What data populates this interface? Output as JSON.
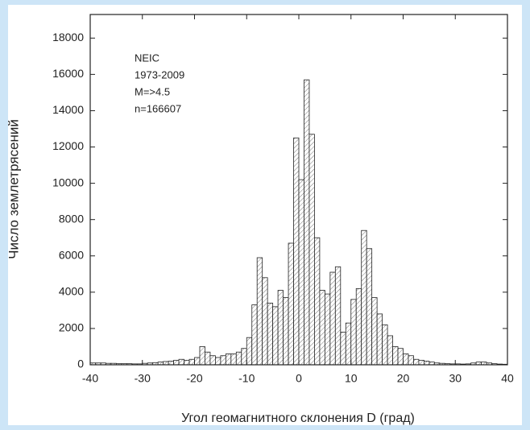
{
  "chart_data": {
    "type": "histogram",
    "xlabel": "Угол геомагнитного склонения D (град)",
    "ylabel": "Число землетрясений",
    "annotations": [
      "NEIC",
      "1973-2009",
      "M=>4.5",
      "n=166607"
    ],
    "bins": [
      -40,
      -39,
      -38,
      -37,
      -36,
      -35,
      -34,
      -33,
      -32,
      -31,
      -30,
      -29,
      -28,
      -27,
      -26,
      -25,
      -24,
      -23,
      -22,
      -21,
      -20,
      -19,
      -18,
      -17,
      -16,
      -15,
      -14,
      -13,
      -12,
      -11,
      -10,
      -9,
      -8,
      -7,
      -6,
      -5,
      -4,
      -3,
      -2,
      -1,
      0,
      1,
      2,
      3,
      4,
      5,
      6,
      7,
      8,
      9,
      10,
      11,
      12,
      13,
      14,
      15,
      16,
      17,
      18,
      19,
      20,
      21,
      22,
      23,
      24,
      25,
      26,
      27,
      28,
      29,
      30,
      31,
      32,
      33,
      34,
      35,
      36,
      37,
      38,
      39,
      40
    ],
    "values": [
      100,
      100,
      100,
      80,
      80,
      60,
      60,
      60,
      50,
      50,
      80,
      100,
      120,
      150,
      180,
      200,
      250,
      300,
      250,
      300,
      400,
      1000,
      700,
      500,
      400,
      500,
      600,
      600,
      700,
      900,
      1500,
      3300,
      5900,
      4800,
      3400,
      3200,
      4100,
      3700,
      6700,
      12500,
      10200,
      15700,
      12700,
      7000,
      4100,
      3900,
      5100,
      5400,
      1800,
      2300,
      3600,
      4200,
      7400,
      6400,
      3700,
      2800,
      2200,
      1600,
      1000,
      900,
      600,
      500,
      300,
      250,
      200,
      150,
      100,
      80,
      60,
      50,
      50,
      40,
      50,
      100,
      150,
      150,
      100,
      60,
      40,
      30
    ],
    "color": "#ffffff",
    "xlim": [
      -40,
      40
    ],
    "ylim": [
      0,
      19300
    ],
    "xticks": [
      -40,
      -30,
      -20,
      -10,
      0,
      10,
      20,
      30,
      40
    ],
    "yticks": [
      0,
      2000,
      4000,
      6000,
      8000,
      10000,
      12000,
      14000,
      16000,
      18000
    ]
  }
}
